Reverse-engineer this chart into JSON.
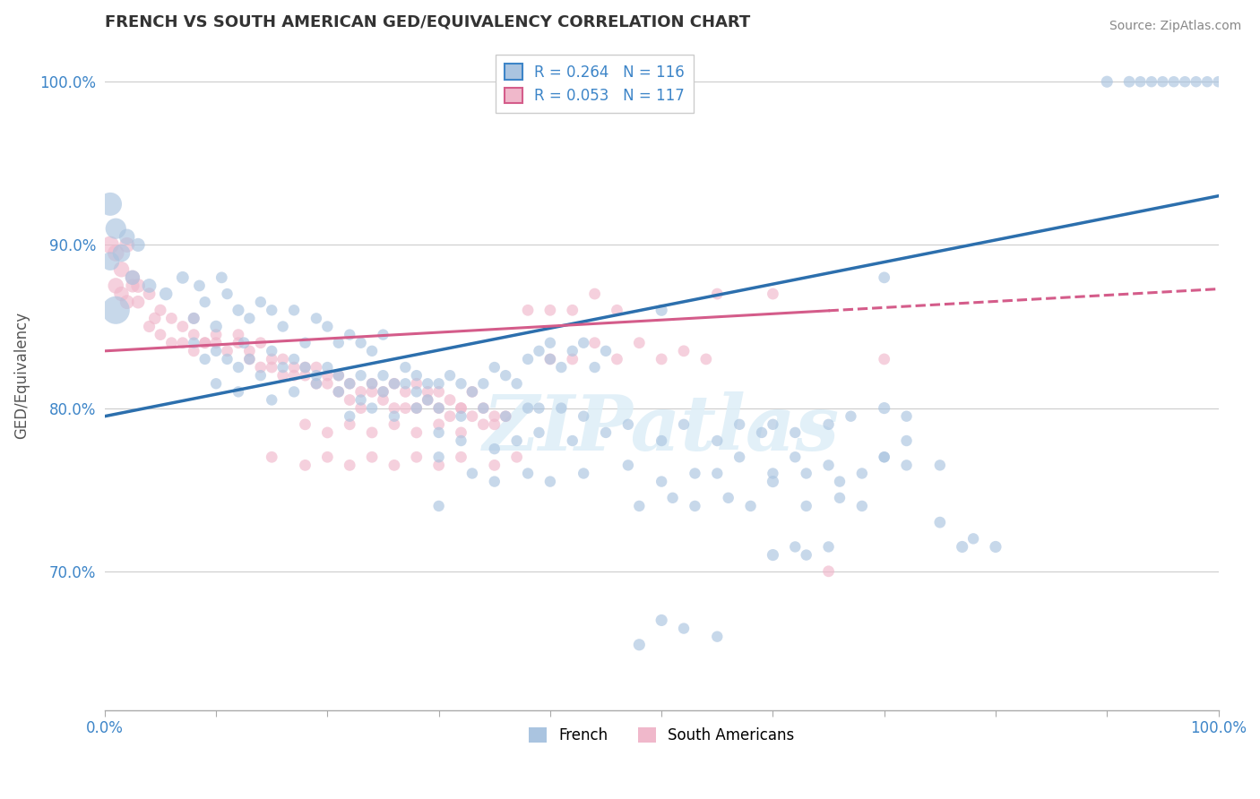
{
  "title": "FRENCH VS SOUTH AMERICAN GED/EQUIVALENCY CORRELATION CHART",
  "source": "Source: ZipAtlas.com",
  "ylabel": "GED/Equivalency",
  "watermark": "ZIPatlas",
  "french_color": "#aac4e0",
  "sa_color": "#f0b8cb",
  "french_line_color": "#2c6fad",
  "sa_line_color": "#d45c8a",
  "xlim": [
    0.0,
    1.0
  ],
  "ylim": [
    0.615,
    1.025
  ],
  "ytick_values": [
    0.7,
    0.8,
    0.9,
    1.0
  ],
  "ytick_labels": [
    "70.0%",
    "80.0%",
    "90.0%",
    "100.0%"
  ],
  "french_trend": [
    0.795,
    0.93
  ],
  "sa_trend_solid_end": 0.65,
  "sa_trend": [
    0.835,
    0.873
  ],
  "french_points": [
    [
      0.01,
      0.91,
      280
    ],
    [
      0.015,
      0.895,
      200
    ],
    [
      0.02,
      0.905,
      160
    ],
    [
      0.025,
      0.88,
      140
    ],
    [
      0.03,
      0.9,
      120
    ],
    [
      0.01,
      0.86,
      500
    ],
    [
      0.005,
      0.925,
      350
    ],
    [
      0.005,
      0.89,
      220
    ],
    [
      0.04,
      0.875,
      130
    ],
    [
      0.055,
      0.87,
      110
    ],
    [
      0.07,
      0.88,
      100
    ],
    [
      0.08,
      0.855,
      90
    ],
    [
      0.085,
      0.875,
      85
    ],
    [
      0.09,
      0.865,
      80
    ],
    [
      0.1,
      0.85,
      95
    ],
    [
      0.105,
      0.88,
      85
    ],
    [
      0.11,
      0.87,
      80
    ],
    [
      0.12,
      0.86,
      90
    ],
    [
      0.125,
      0.84,
      85
    ],
    [
      0.13,
      0.855,
      80
    ],
    [
      0.14,
      0.865,
      80
    ],
    [
      0.15,
      0.86,
      80
    ],
    [
      0.16,
      0.85,
      80
    ],
    [
      0.17,
      0.86,
      80
    ],
    [
      0.18,
      0.84,
      80
    ],
    [
      0.19,
      0.855,
      80
    ],
    [
      0.2,
      0.85,
      80
    ],
    [
      0.21,
      0.84,
      80
    ],
    [
      0.22,
      0.845,
      80
    ],
    [
      0.23,
      0.84,
      80
    ],
    [
      0.24,
      0.835,
      80
    ],
    [
      0.25,
      0.845,
      80
    ],
    [
      0.08,
      0.84,
      80
    ],
    [
      0.09,
      0.83,
      80
    ],
    [
      0.1,
      0.835,
      80
    ],
    [
      0.11,
      0.83,
      80
    ],
    [
      0.12,
      0.825,
      80
    ],
    [
      0.13,
      0.83,
      80
    ],
    [
      0.14,
      0.82,
      80
    ],
    [
      0.15,
      0.835,
      80
    ],
    [
      0.16,
      0.825,
      80
    ],
    [
      0.17,
      0.83,
      80
    ],
    [
      0.18,
      0.825,
      80
    ],
    [
      0.19,
      0.82,
      80
    ],
    [
      0.2,
      0.825,
      80
    ],
    [
      0.21,
      0.82,
      80
    ],
    [
      0.22,
      0.815,
      80
    ],
    [
      0.23,
      0.82,
      80
    ],
    [
      0.24,
      0.815,
      80
    ],
    [
      0.25,
      0.82,
      80
    ],
    [
      0.26,
      0.815,
      80
    ],
    [
      0.27,
      0.825,
      80
    ],
    [
      0.28,
      0.82,
      80
    ],
    [
      0.29,
      0.815,
      80
    ],
    [
      0.1,
      0.815,
      80
    ],
    [
      0.12,
      0.81,
      80
    ],
    [
      0.15,
      0.805,
      80
    ],
    [
      0.17,
      0.81,
      80
    ],
    [
      0.19,
      0.815,
      80
    ],
    [
      0.21,
      0.81,
      80
    ],
    [
      0.23,
      0.805,
      80
    ],
    [
      0.25,
      0.81,
      80
    ],
    [
      0.27,
      0.815,
      80
    ],
    [
      0.28,
      0.81,
      80
    ],
    [
      0.29,
      0.805,
      80
    ],
    [
      0.3,
      0.815,
      80
    ],
    [
      0.31,
      0.82,
      80
    ],
    [
      0.32,
      0.815,
      80
    ],
    [
      0.33,
      0.81,
      80
    ],
    [
      0.34,
      0.815,
      80
    ],
    [
      0.35,
      0.825,
      80
    ],
    [
      0.36,
      0.82,
      80
    ],
    [
      0.37,
      0.815,
      80
    ],
    [
      0.38,
      0.83,
      80
    ],
    [
      0.39,
      0.835,
      80
    ],
    [
      0.4,
      0.83,
      80
    ],
    [
      0.4,
      0.84,
      80
    ],
    [
      0.41,
      0.825,
      80
    ],
    [
      0.42,
      0.835,
      80
    ],
    [
      0.43,
      0.84,
      80
    ],
    [
      0.44,
      0.825,
      80
    ],
    [
      0.45,
      0.835,
      80
    ],
    [
      0.5,
      0.86,
      90
    ],
    [
      0.3,
      0.8,
      80
    ],
    [
      0.32,
      0.795,
      80
    ],
    [
      0.34,
      0.8,
      80
    ],
    [
      0.36,
      0.795,
      80
    ],
    [
      0.38,
      0.8,
      80
    ],
    [
      0.39,
      0.8,
      80
    ],
    [
      0.41,
      0.8,
      80
    ],
    [
      0.43,
      0.795,
      80
    ],
    [
      0.22,
      0.795,
      80
    ],
    [
      0.24,
      0.8,
      80
    ],
    [
      0.26,
      0.795,
      80
    ],
    [
      0.28,
      0.8,
      80
    ],
    [
      0.3,
      0.785,
      80
    ],
    [
      0.32,
      0.78,
      80
    ],
    [
      0.35,
      0.775,
      80
    ],
    [
      0.37,
      0.78,
      80
    ],
    [
      0.39,
      0.785,
      80
    ],
    [
      0.42,
      0.78,
      80
    ],
    [
      0.45,
      0.785,
      80
    ],
    [
      0.47,
      0.79,
      80
    ],
    [
      0.5,
      0.78,
      80
    ],
    [
      0.52,
      0.79,
      80
    ],
    [
      0.55,
      0.78,
      80
    ],
    [
      0.57,
      0.79,
      80
    ],
    [
      0.59,
      0.785,
      80
    ],
    [
      0.6,
      0.79,
      80
    ],
    [
      0.62,
      0.785,
      80
    ],
    [
      0.65,
      0.79,
      80
    ],
    [
      0.67,
      0.795,
      80
    ],
    [
      0.7,
      0.8,
      90
    ],
    [
      0.72,
      0.795,
      80
    ],
    [
      0.55,
      0.76,
      80
    ],
    [
      0.57,
      0.77,
      80
    ],
    [
      0.6,
      0.76,
      80
    ],
    [
      0.62,
      0.77,
      80
    ],
    [
      0.65,
      0.765,
      80
    ],
    [
      0.68,
      0.76,
      80
    ],
    [
      0.7,
      0.77,
      80
    ],
    [
      0.72,
      0.765,
      80
    ],
    [
      0.75,
      0.765,
      80
    ],
    [
      0.6,
      0.755,
      90
    ],
    [
      0.63,
      0.76,
      80
    ],
    [
      0.66,
      0.755,
      80
    ],
    [
      0.3,
      0.77,
      80
    ],
    [
      0.33,
      0.76,
      80
    ],
    [
      0.35,
      0.755,
      80
    ],
    [
      0.38,
      0.76,
      80
    ],
    [
      0.4,
      0.755,
      80
    ],
    [
      0.43,
      0.76,
      80
    ],
    [
      0.47,
      0.765,
      80
    ],
    [
      0.5,
      0.755,
      80
    ],
    [
      0.53,
      0.76,
      80
    ],
    [
      0.48,
      0.74,
      80
    ],
    [
      0.51,
      0.745,
      80
    ],
    [
      0.53,
      0.74,
      80
    ],
    [
      0.56,
      0.745,
      80
    ],
    [
      0.58,
      0.74,
      80
    ],
    [
      0.63,
      0.74,
      80
    ],
    [
      0.66,
      0.745,
      80
    ],
    [
      0.68,
      0.74,
      80
    ],
    [
      0.5,
      0.67,
      90
    ],
    [
      0.52,
      0.665,
      80
    ],
    [
      0.55,
      0.66,
      80
    ],
    [
      0.48,
      0.655,
      90
    ],
    [
      0.6,
      0.71,
      90
    ],
    [
      0.62,
      0.715,
      80
    ],
    [
      0.63,
      0.71,
      80
    ],
    [
      0.65,
      0.715,
      80
    ],
    [
      0.3,
      0.74,
      80
    ],
    [
      0.7,
      0.77,
      80
    ],
    [
      0.72,
      0.78,
      80
    ],
    [
      0.75,
      0.73,
      85
    ],
    [
      0.77,
      0.715,
      90
    ],
    [
      0.78,
      0.72,
      80
    ],
    [
      0.8,
      0.715,
      90
    ],
    [
      0.7,
      0.88,
      85
    ],
    [
      0.9,
      1.0,
      90
    ],
    [
      0.92,
      1.0,
      85
    ],
    [
      0.93,
      1.0,
      80
    ],
    [
      0.94,
      1.0,
      80
    ],
    [
      0.95,
      1.0,
      80
    ],
    [
      0.96,
      1.0,
      80
    ],
    [
      0.97,
      1.0,
      80
    ],
    [
      0.98,
      1.0,
      80
    ],
    [
      0.99,
      1.0,
      80
    ],
    [
      1.0,
      1.0,
      80
    ]
  ],
  "sa_points": [
    [
      0.005,
      0.9,
      200
    ],
    [
      0.01,
      0.895,
      180
    ],
    [
      0.015,
      0.885,
      160
    ],
    [
      0.02,
      0.9,
      150
    ],
    [
      0.025,
      0.88,
      140
    ],
    [
      0.03,
      0.875,
      130
    ],
    [
      0.01,
      0.875,
      160
    ],
    [
      0.015,
      0.87,
      140
    ],
    [
      0.02,
      0.865,
      130
    ],
    [
      0.025,
      0.875,
      120
    ],
    [
      0.03,
      0.865,
      110
    ],
    [
      0.04,
      0.87,
      100
    ],
    [
      0.045,
      0.855,
      95
    ],
    [
      0.05,
      0.86,
      90
    ],
    [
      0.04,
      0.85,
      90
    ],
    [
      0.05,
      0.845,
      85
    ],
    [
      0.06,
      0.855,
      85
    ],
    [
      0.06,
      0.84,
      85
    ],
    [
      0.07,
      0.85,
      85
    ],
    [
      0.08,
      0.855,
      85
    ],
    [
      0.07,
      0.84,
      85
    ],
    [
      0.08,
      0.845,
      85
    ],
    [
      0.09,
      0.84,
      85
    ],
    [
      0.08,
      0.835,
      85
    ],
    [
      0.09,
      0.84,
      85
    ],
    [
      0.1,
      0.845,
      85
    ],
    [
      0.1,
      0.84,
      85
    ],
    [
      0.11,
      0.835,
      85
    ],
    [
      0.12,
      0.845,
      85
    ],
    [
      0.12,
      0.84,
      85
    ],
    [
      0.13,
      0.835,
      85
    ],
    [
      0.14,
      0.84,
      85
    ],
    [
      0.13,
      0.83,
      85
    ],
    [
      0.14,
      0.825,
      85
    ],
    [
      0.15,
      0.83,
      85
    ],
    [
      0.15,
      0.825,
      85
    ],
    [
      0.16,
      0.83,
      85
    ],
    [
      0.17,
      0.825,
      85
    ],
    [
      0.16,
      0.82,
      85
    ],
    [
      0.17,
      0.82,
      85
    ],
    [
      0.18,
      0.825,
      85
    ],
    [
      0.18,
      0.82,
      85
    ],
    [
      0.19,
      0.825,
      85
    ],
    [
      0.2,
      0.82,
      85
    ],
    [
      0.19,
      0.815,
      85
    ],
    [
      0.2,
      0.815,
      85
    ],
    [
      0.21,
      0.82,
      85
    ],
    [
      0.21,
      0.81,
      85
    ],
    [
      0.22,
      0.815,
      85
    ],
    [
      0.23,
      0.81,
      85
    ],
    [
      0.22,
      0.805,
      85
    ],
    [
      0.23,
      0.8,
      85
    ],
    [
      0.24,
      0.815,
      85
    ],
    [
      0.24,
      0.81,
      85
    ],
    [
      0.25,
      0.81,
      85
    ],
    [
      0.26,
      0.815,
      85
    ],
    [
      0.25,
      0.805,
      85
    ],
    [
      0.26,
      0.8,
      85
    ],
    [
      0.27,
      0.81,
      85
    ],
    [
      0.27,
      0.8,
      85
    ],
    [
      0.28,
      0.815,
      85
    ],
    [
      0.29,
      0.81,
      85
    ],
    [
      0.28,
      0.8,
      85
    ],
    [
      0.29,
      0.805,
      85
    ],
    [
      0.3,
      0.81,
      85
    ],
    [
      0.3,
      0.8,
      85
    ],
    [
      0.31,
      0.805,
      85
    ],
    [
      0.32,
      0.8,
      85
    ],
    [
      0.31,
      0.795,
      85
    ],
    [
      0.32,
      0.8,
      85
    ],
    [
      0.33,
      0.81,
      85
    ],
    [
      0.33,
      0.795,
      85
    ],
    [
      0.34,
      0.8,
      85
    ],
    [
      0.35,
      0.795,
      85
    ],
    [
      0.34,
      0.79,
      85
    ],
    [
      0.35,
      0.79,
      85
    ],
    [
      0.36,
      0.795,
      85
    ],
    [
      0.18,
      0.79,
      85
    ],
    [
      0.2,
      0.785,
      85
    ],
    [
      0.22,
      0.79,
      85
    ],
    [
      0.24,
      0.785,
      85
    ],
    [
      0.26,
      0.79,
      85
    ],
    [
      0.28,
      0.785,
      85
    ],
    [
      0.3,
      0.79,
      85
    ],
    [
      0.32,
      0.785,
      85
    ],
    [
      0.15,
      0.77,
      85
    ],
    [
      0.18,
      0.765,
      85
    ],
    [
      0.2,
      0.77,
      85
    ],
    [
      0.22,
      0.765,
      85
    ],
    [
      0.24,
      0.77,
      85
    ],
    [
      0.26,
      0.765,
      85
    ],
    [
      0.28,
      0.77,
      85
    ],
    [
      0.3,
      0.765,
      85
    ],
    [
      0.32,
      0.77,
      85
    ],
    [
      0.35,
      0.765,
      85
    ],
    [
      0.37,
      0.77,
      85
    ],
    [
      0.38,
      0.86,
      85
    ],
    [
      0.4,
      0.86,
      85
    ],
    [
      0.42,
      0.86,
      85
    ],
    [
      0.44,
      0.87,
      85
    ],
    [
      0.46,
      0.86,
      85
    ],
    [
      0.55,
      0.87,
      85
    ],
    [
      0.4,
      0.83,
      85
    ],
    [
      0.42,
      0.83,
      85
    ],
    [
      0.44,
      0.84,
      85
    ],
    [
      0.46,
      0.83,
      85
    ],
    [
      0.48,
      0.84,
      85
    ],
    [
      0.5,
      0.83,
      85
    ],
    [
      0.52,
      0.835,
      85
    ],
    [
      0.54,
      0.83,
      85
    ],
    [
      0.6,
      0.87,
      85
    ],
    [
      0.65,
      0.7,
      85
    ],
    [
      0.7,
      0.83,
      85
    ]
  ]
}
